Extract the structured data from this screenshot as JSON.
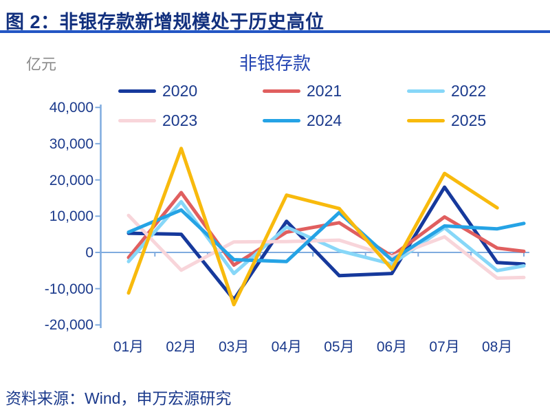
{
  "header": {
    "title": "图 2：非银存款新增规模处于历史高位"
  },
  "unit_label": "亿元",
  "source": "资料来源：Wind，申万宏源研究",
  "colors": {
    "title_text": "#12307e",
    "title_rule": "#2356c4",
    "body_text": "#1b3a8c",
    "chart_title_text": "#2445b2",
    "unit_text": "#898989",
    "axis_line": "#7fabdf"
  },
  "chart_data": {
    "type": "line",
    "title": "非银存款",
    "unit": "亿元",
    "categories": [
      "01月",
      "02月",
      "03月",
      "04月",
      "05月",
      "06月",
      "07月",
      "08月"
    ],
    "y_axis": {
      "tick_labels": [
        "40,000",
        "30,000",
        "20,000",
        "10,000",
        "0",
        "-10,000",
        "-20,000"
      ],
      "tick_values": [
        40000,
        30000,
        20000,
        10000,
        0,
        -10000,
        -20000
      ],
      "ylim": [
        -20000,
        40000
      ]
    },
    "grid": false,
    "legend_position": "top",
    "legend_rows": [
      [
        "2020",
        "2021",
        "2022"
      ],
      [
        "2023",
        "2024",
        "2025"
      ]
    ],
    "series": [
      {
        "name": "2020",
        "color": "#16399c",
        "values": [
          5300,
          5000,
          -13000,
          8600,
          -6400,
          -5800,
          18000,
          -2800
        ],
        "edge_value": -3200
      },
      {
        "name": "2021",
        "color": "#e05f5f",
        "values": [
          -1400,
          16500,
          -3500,
          5600,
          8200,
          -1000,
          9800,
          1200
        ],
        "edge_value": 300
      },
      {
        "name": "2022",
        "color": "#87d7f8",
        "values": [
          -2500,
          14000,
          -5800,
          7000,
          500,
          -3200,
          6800,
          -5000
        ],
        "edge_value": -3700
      },
      {
        "name": "2023",
        "color": "#f8d5da",
        "values": [
          10200,
          -4900,
          2900,
          3000,
          3400,
          -1200,
          4300,
          -7100
        ],
        "edge_value": -6900
      },
      {
        "name": "2024",
        "color": "#25a3e5",
        "values": [
          5600,
          11700,
          -2000,
          -2500,
          11000,
          -2100,
          7300,
          6500
        ],
        "edge_value": 8000
      },
      {
        "name": "2025",
        "color": "#f8ba0d",
        "values": [
          -11200,
          28700,
          -14400,
          15800,
          12100,
          -4600,
          21800,
          12300
        ],
        "edge_value": null
      }
    ]
  }
}
